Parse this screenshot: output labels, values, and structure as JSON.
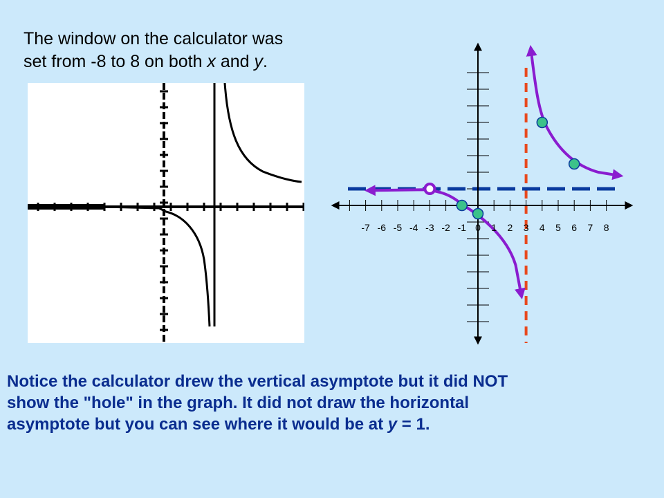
{
  "intro": {
    "line1": "The window on the calculator was",
    "line2_pre": "set from -8 to 8 on both ",
    "var_x": "x",
    "line2_mid": " and ",
    "var_y": "y",
    "line2_post": "."
  },
  "graph": {
    "x_tick_labels": [
      "-7",
      "-6",
      "-5",
      "-4",
      "-3",
      "-2",
      "-1",
      "0",
      "1",
      "2",
      "3",
      "4",
      "5",
      "6",
      "7",
      "8"
    ],
    "vertical_asymptote_x": 3,
    "horizontal_asymptote_y": 1,
    "hole": {
      "x": -3,
      "y": 1
    },
    "points": [
      {
        "x": -1,
        "y": 0
      },
      {
        "x": 0,
        "y": -0.5
      },
      {
        "x": 4,
        "y": 5
      },
      {
        "x": 6,
        "y": 2.5
      }
    ],
    "colors": {
      "axes": "#000000",
      "curve": "#8a1ccf",
      "vertical_asymptote": "#e8491d",
      "horizontal_asymptote": "#0a3a9e",
      "point_fill": "#3cc28a"
    }
  },
  "note": {
    "line1": "Notice the calculator drew the vertical asymptote but it did NOT",
    "line2": "show the \"hole\" in the graph.  It did not draw the horizontal",
    "line3_pre": "asymptote but you can see where it would be at ",
    "var_y": "y",
    "line3_post": " = 1."
  }
}
